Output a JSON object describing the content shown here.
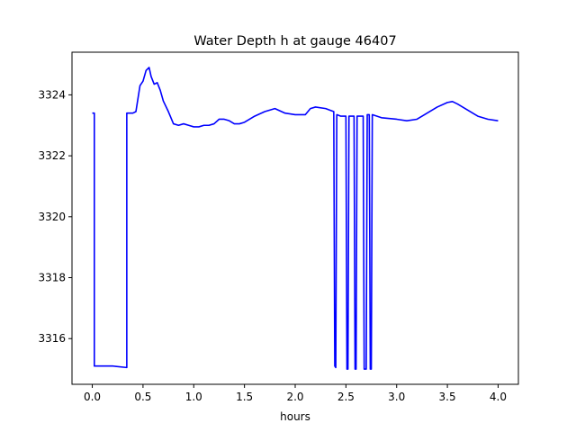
{
  "chart_data": {
    "type": "line",
    "title": "Water Depth h at gauge 46407",
    "xlabel": "hours",
    "ylabel": "",
    "xlim": [
      -0.2,
      4.2
    ],
    "ylim": [
      3314.5,
      3325.4
    ],
    "xticks": [
      0.0,
      0.5,
      1.0,
      1.5,
      2.0,
      2.5,
      3.0,
      3.5,
      4.0
    ],
    "xtick_labels": [
      "0.0",
      "0.5",
      "1.0",
      "1.5",
      "2.0",
      "2.5",
      "3.0",
      "3.5",
      "4.0"
    ],
    "yticks": [
      3316,
      3318,
      3320,
      3322,
      3324
    ],
    "ytick_labels": [
      "3316",
      "3318",
      "3320",
      "3322",
      "3324"
    ],
    "grid": false,
    "series": [
      {
        "color": "#0000ff",
        "points": [
          [
            0.0,
            3323.4
          ],
          [
            0.02,
            3323.4
          ],
          [
            0.02,
            3315.1
          ],
          [
            0.2,
            3315.1
          ],
          [
            0.34,
            3315.05
          ],
          [
            0.34,
            3323.4
          ],
          [
            0.4,
            3323.4
          ],
          [
            0.43,
            3323.45
          ],
          [
            0.47,
            3324.3
          ],
          [
            0.5,
            3324.45
          ],
          [
            0.53,
            3324.8
          ],
          [
            0.56,
            3324.9
          ],
          [
            0.58,
            3324.6
          ],
          [
            0.61,
            3324.35
          ],
          [
            0.64,
            3324.4
          ],
          [
            0.67,
            3324.15
          ],
          [
            0.7,
            3323.8
          ],
          [
            0.75,
            3323.45
          ],
          [
            0.8,
            3323.05
          ],
          [
            0.85,
            3323.0
          ],
          [
            0.9,
            3323.05
          ],
          [
            0.95,
            3323.0
          ],
          [
            1.0,
            3322.95
          ],
          [
            1.05,
            3322.95
          ],
          [
            1.1,
            3323.0
          ],
          [
            1.15,
            3323.0
          ],
          [
            1.2,
            3323.05
          ],
          [
            1.25,
            3323.2
          ],
          [
            1.3,
            3323.2
          ],
          [
            1.35,
            3323.15
          ],
          [
            1.4,
            3323.05
          ],
          [
            1.45,
            3323.05
          ],
          [
            1.5,
            3323.1
          ],
          [
            1.6,
            3323.3
          ],
          [
            1.7,
            3323.45
          ],
          [
            1.8,
            3323.55
          ],
          [
            1.9,
            3323.4
          ],
          [
            2.0,
            3323.35
          ],
          [
            2.1,
            3323.35
          ],
          [
            2.15,
            3323.55
          ],
          [
            2.2,
            3323.6
          ],
          [
            2.3,
            3323.55
          ],
          [
            2.38,
            3323.45
          ],
          [
            2.39,
            3315.1
          ],
          [
            2.4,
            3315.05
          ],
          [
            2.41,
            3323.35
          ],
          [
            2.45,
            3323.3
          ],
          [
            2.5,
            3323.3
          ],
          [
            2.51,
            3315.0
          ],
          [
            2.52,
            3315.0
          ],
          [
            2.53,
            3323.3
          ],
          [
            2.58,
            3323.3
          ],
          [
            2.59,
            3315.0
          ],
          [
            2.6,
            3315.0
          ],
          [
            2.61,
            3323.3
          ],
          [
            2.67,
            3323.3
          ],
          [
            2.68,
            3315.0
          ],
          [
            2.7,
            3315.0
          ],
          [
            2.71,
            3323.35
          ],
          [
            2.73,
            3323.35
          ],
          [
            2.74,
            3315.0
          ],
          [
            2.75,
            3315.0
          ],
          [
            2.76,
            3323.35
          ],
          [
            2.85,
            3323.25
          ],
          [
            3.0,
            3323.2
          ],
          [
            3.1,
            3323.15
          ],
          [
            3.2,
            3323.2
          ],
          [
            3.3,
            3323.4
          ],
          [
            3.4,
            3323.6
          ],
          [
            3.5,
            3323.75
          ],
          [
            3.55,
            3323.78
          ],
          [
            3.6,
            3323.7
          ],
          [
            3.7,
            3323.5
          ],
          [
            3.8,
            3323.3
          ],
          [
            3.9,
            3323.2
          ],
          [
            4.0,
            3323.15
          ]
        ]
      }
    ]
  }
}
